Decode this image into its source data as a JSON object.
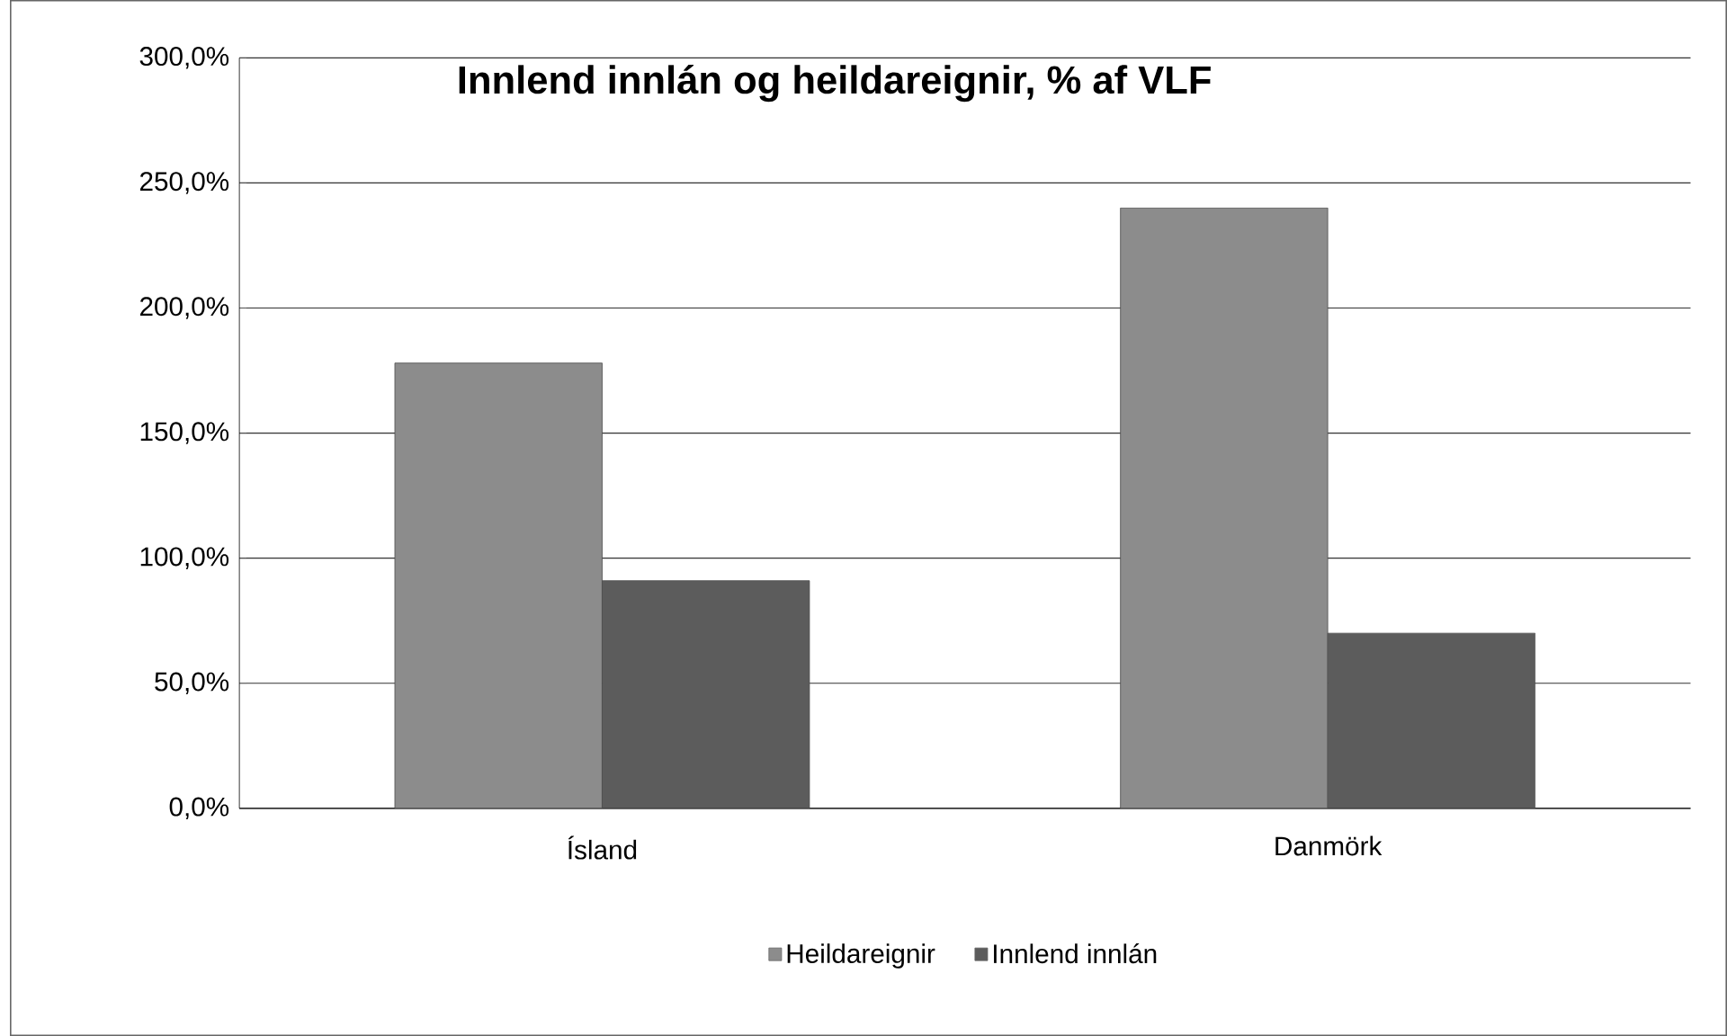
{
  "chart_data": {
    "type": "bar",
    "title": "Innlend innlán og heildareignir, % af VLF",
    "categories": [
      "Ísland",
      "Danmörk"
    ],
    "series": [
      {
        "name": "Heildareignir",
        "color": "#8c8c8c",
        "values": [
          178,
          240
        ]
      },
      {
        "name": "Innlend innlán",
        "color": "#5c5c5c",
        "values": [
          91,
          70
        ]
      }
    ],
    "ylim": [
      0,
      300
    ],
    "yticks": [
      {
        "value": 0,
        "label": "0,0%"
      },
      {
        "value": 50,
        "label": "50,0%"
      },
      {
        "value": 100,
        "label": "100,0%"
      },
      {
        "value": 150,
        "label": "150,0%"
      },
      {
        "value": 200,
        "label": "200,0%"
      },
      {
        "value": 250,
        "label": "250,0%"
      },
      {
        "value": 300,
        "label": "300,0%"
      }
    ],
    "grid": "y",
    "legend": "bottom"
  }
}
